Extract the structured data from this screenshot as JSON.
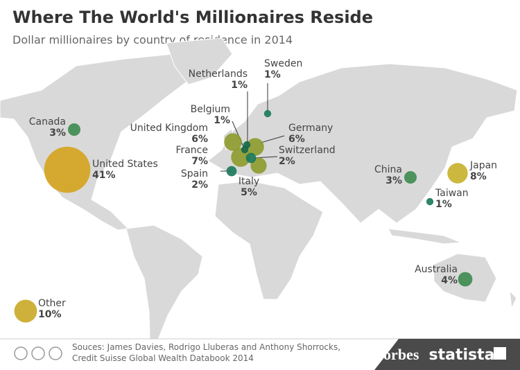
{
  "chart_data": {
    "type": "bubble_map",
    "title": "Where The World's Millionaires Reside",
    "subtitle": "Dollar millionaires by country of residence in 2014",
    "categories": [
      "Canada",
      "United States",
      "United Kingdom",
      "France",
      "Spain",
      "Netherlands",
      "Belgium",
      "Sweden",
      "Germany",
      "Switzerland",
      "Italy",
      "China",
      "Japan",
      "Taiwan",
      "Australia",
      "Other"
    ],
    "values": [
      3,
      41,
      6,
      7,
      2,
      1,
      1,
      1,
      6,
      2,
      5,
      3,
      8,
      1,
      4,
      10
    ],
    "value_labels": [
      "3%",
      "41%",
      "6%",
      "7%",
      "2%",
      "1%",
      "1%",
      "1%",
      "6%",
      "2%",
      "5%",
      "3%",
      "8%",
      "1%",
      "4%",
      "10%"
    ],
    "colors": [
      "#3b8a4e",
      "#d4a21c",
      "#8c9a2b",
      "#8c9a2b",
      "#17785a",
      "#12664a",
      "#12664a",
      "#17785a",
      "#8c9a2b",
      "#17785a",
      "#8c9a2b",
      "#3b8a4e",
      "#c7b02a",
      "#17785a",
      "#3b8a4e",
      "#c9a826"
    ],
    "source": [
      "Souces: James Davies, Rodrigo Lluberas and Anthony Shorrocks,",
      "Credit Suisse Global Wealth Databook 2014"
    ],
    "brands": [
      "Forbes",
      "statista"
    ]
  }
}
